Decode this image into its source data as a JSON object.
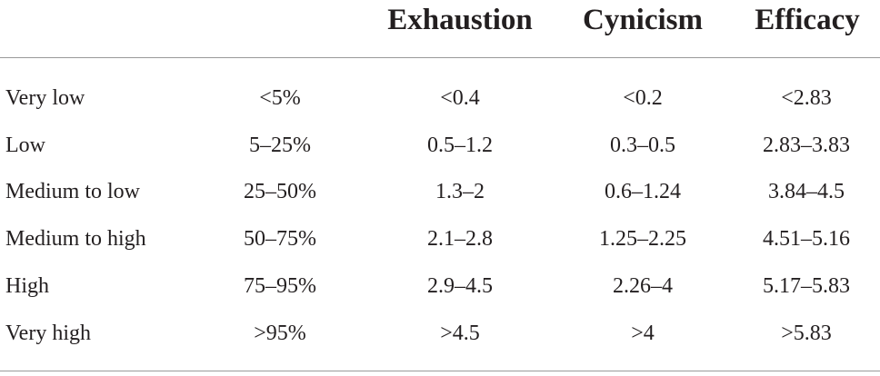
{
  "table": {
    "headers": [
      "",
      "",
      "Exhaustion",
      "Cynicism",
      "Efficacy"
    ],
    "rows": [
      [
        "Very low",
        "<5%",
        "<0.4",
        "<0.2",
        "<2.83"
      ],
      [
        "Low",
        "5–25%",
        "0.5–1.2",
        "0.3–0.5",
        "2.83–3.83"
      ],
      [
        "Medium to low",
        "25–50%",
        "1.3–2",
        "0.6–1.24",
        "3.84–4.5"
      ],
      [
        "Medium to high",
        "50–75%",
        "2.1–2.8",
        "1.25–2.25",
        "4.51–5.16"
      ],
      [
        "High",
        "75–95%",
        "2.9–4.5",
        "2.26–4",
        "5.17–5.83"
      ],
      [
        "Very high",
        ">95%",
        ">4.5",
        ">4",
        ">5.83"
      ]
    ]
  }
}
